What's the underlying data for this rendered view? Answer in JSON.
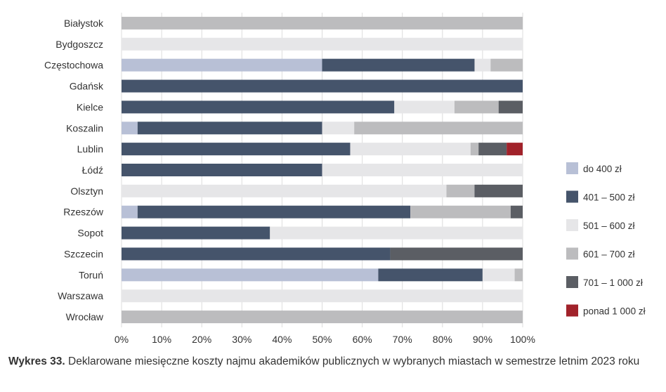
{
  "chart_data": {
    "type": "bar",
    "orientation": "horizontal",
    "stacked": true,
    "categories": [
      "Białystok",
      "Bydgoszcz",
      "Częstochowa",
      "Gdańsk",
      "Kielce",
      "Koszalin",
      "Lublin",
      "Łódź",
      "Olsztyn",
      "Rzeszów",
      "Sopot",
      "Szczecin",
      "Toruń",
      "Warszawa",
      "Wrocław"
    ],
    "series": [
      {
        "name": "do 400 zł",
        "color": "#b8c0d6",
        "values": [
          0,
          0,
          50,
          0,
          0,
          4,
          0,
          0,
          0,
          4,
          0,
          0,
          64,
          0,
          0
        ]
      },
      {
        "name": "401 – 500 zł",
        "color": "#45546b",
        "values": [
          0,
          0,
          38,
          100,
          68,
          46,
          57,
          50,
          0,
          68,
          37,
          67,
          26,
          0,
          0
        ]
      },
      {
        "name": "501 – 600 zł",
        "color": "#e6e6e8",
        "values": [
          0,
          100,
          4,
          0,
          15,
          8,
          30,
          50,
          81,
          0,
          63,
          0,
          8,
          100,
          0
        ]
      },
      {
        "name": "601 – 700 zł",
        "color": "#bcbcbe",
        "values": [
          100,
          0,
          8,
          0,
          11,
          42,
          2,
          0,
          7,
          25,
          0,
          0,
          2,
          0,
          100
        ]
      },
      {
        "name": "701 – 1 000 zł",
        "color": "#5b5e64",
        "values": [
          0,
          0,
          0,
          0,
          6,
          0,
          7,
          0,
          12,
          3,
          0,
          33,
          0,
          0,
          0
        ]
      },
      {
        "name": "ponad 1 000 zł",
        "color": "#a1222a",
        "values": [
          0,
          0,
          0,
          0,
          0,
          0,
          4,
          0,
          0,
          0,
          0,
          0,
          0,
          0,
          0
        ]
      }
    ],
    "xticks": [
      "0%",
      "10%",
      "20%",
      "30%",
      "40%",
      "50%",
      "60%",
      "70%",
      "80%",
      "90%",
      "100%"
    ],
    "xlim": [
      0,
      100
    ],
    "grid": "vertical",
    "legend": "right"
  },
  "caption": {
    "label": "Wykres 33.",
    "text": " Deklarowane miesięczne koszty najmu akademików publicznych w wybranych miastach w semestrze letnim 2023 roku"
  }
}
